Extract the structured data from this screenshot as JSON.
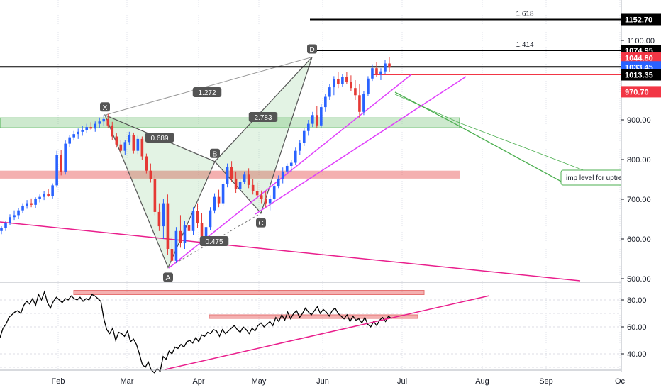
{
  "chart_data": [
    {
      "type": "candlestick",
      "title": "",
      "x_ticks": [
        "Feb",
        "Mar",
        "Apr",
        "May",
        "Jun",
        "Jul",
        "Aug",
        "Sep",
        "Oc"
      ],
      "y_ticks": [
        "500.00",
        "600.00",
        "700.00",
        "800.00",
        "900.00",
        "1100.00"
      ],
      "ylim": [
        495,
        1170
      ],
      "price_tags": [
        {
          "label": "1152.70",
          "value": 1152.7,
          "color": "#000000"
        },
        {
          "label": "1074.95",
          "value": 1074.95,
          "color": "#000000"
        },
        {
          "label": "1044.80",
          "value": 1044.8,
          "color": "#f23645"
        },
        {
          "label": "1033.45",
          "value": 1033.45,
          "color": "#2962ff"
        },
        {
          "label": "1013.35",
          "value": 1013.35,
          "color": "#000000"
        },
        {
          "label": "970.70",
          "value": 970.7,
          "color": "#f23645"
        }
      ],
      "fib_levels": [
        {
          "label": "1.618",
          "value": 1152.7
        },
        {
          "label": "1.414",
          "value": 1074.95
        }
      ],
      "pattern_points": [
        {
          "label": "X",
          "date": "2020-02-20",
          "value": 912
        },
        {
          "label": "A",
          "date": "2020-03-18",
          "value": 528
        },
        {
          "label": "B",
          "date": "2020-04-13",
          "value": 795
        },
        {
          "label": "C",
          "date": "2020-05-04",
          "value": 665
        },
        {
          "label": "D",
          "date": "2020-05-29",
          "value": 1058
        }
      ],
      "ratios": [
        "1.272",
        "0.689",
        "2.783",
        "0.475"
      ],
      "zones": [
        {
          "from": 880,
          "to": 905,
          "color": "green"
        },
        {
          "from": 752,
          "to": 772,
          "color": "red"
        }
      ],
      "annotation": "imp level for uptrend",
      "candles": [
        [
          620,
          632,
          612,
          628
        ],
        [
          628,
          645,
          620,
          640
        ],
        [
          640,
          662,
          635,
          655
        ],
        [
          655,
          672,
          648,
          660
        ],
        [
          660,
          678,
          650,
          672
        ],
        [
          672,
          690,
          665,
          684
        ],
        [
          684,
          698,
          676,
          690
        ],
        [
          690,
          702,
          680,
          686
        ],
        [
          686,
          705,
          678,
          700
        ],
        [
          700,
          712,
          692,
          706
        ],
        [
          706,
          720,
          698,
          714
        ],
        [
          714,
          726,
          706,
          708
        ],
        [
          708,
          740,
          702,
          735
        ],
        [
          735,
          822,
          730,
          812
        ],
        [
          812,
          825,
          760,
          768
        ],
        [
          768,
          848,
          762,
          840
        ],
        [
          840,
          862,
          832,
          856
        ],
        [
          856,
          872,
          848,
          864
        ],
        [
          864,
          878,
          852,
          870
        ],
        [
          870,
          885,
          860,
          874
        ],
        [
          874,
          890,
          866,
          882
        ],
        [
          882,
          894,
          874,
          878
        ],
        [
          878,
          896,
          870,
          890
        ],
        [
          890,
          906,
          880,
          896
        ],
        [
          896,
          912,
          884,
          902
        ],
        [
          902,
          915,
          880,
          886
        ],
        [
          886,
          895,
          850,
          858
        ],
        [
          858,
          866,
          830,
          838
        ],
        [
          838,
          848,
          815,
          822
        ],
        [
          822,
          850,
          812,
          844
        ],
        [
          844,
          870,
          836,
          862
        ],
        [
          862,
          868,
          815,
          822
        ],
        [
          822,
          860,
          814,
          852
        ],
        [
          852,
          858,
          800,
          808
        ],
        [
          808,
          815,
          765,
          772
        ],
        [
          772,
          790,
          742,
          750
        ],
        [
          750,
          760,
          660,
          668
        ],
        [
          668,
          690,
          620,
          632
        ],
        [
          632,
          700,
          600,
          690
        ],
        [
          690,
          712,
          560,
          575
        ],
        [
          575,
          605,
          530,
          545
        ],
        [
          545,
          630,
          540,
          620
        ],
        [
          620,
          660,
          578,
          590
        ],
        [
          590,
          645,
          575,
          635
        ],
        [
          635,
          665,
          610,
          620
        ],
        [
          620,
          680,
          610,
          670
        ],
        [
          670,
          690,
          628,
          640
        ],
        [
          640,
          665,
          582,
          600
        ],
        [
          600,
          640,
          590,
          630
        ],
        [
          630,
          680,
          622,
          672
        ],
        [
          672,
          715,
          664,
          706
        ],
        [
          706,
          724,
          680,
          690
        ],
        [
          690,
          745,
          684,
          738
        ],
        [
          738,
          790,
          730,
          782
        ],
        [
          782,
          796,
          744,
          752
        ],
        [
          752,
          770,
          716,
          726
        ],
        [
          726,
          752,
          720,
          744
        ],
        [
          744,
          770,
          738,
          762
        ],
        [
          762,
          778,
          728,
          736
        ],
        [
          736,
          750,
          712,
          720
        ],
        [
          720,
          742,
          700,
          710
        ],
        [
          710,
          722,
          690,
          700
        ],
        [
          700,
          720,
          680,
          690
        ],
        [
          690,
          710,
          672,
          700
        ],
        [
          700,
          740,
          695,
          732
        ],
        [
          732,
          760,
          728,
          752
        ],
        [
          752,
          780,
          740,
          770
        ],
        [
          770,
          790,
          764,
          784
        ],
        [
          784,
          800,
          770,
          792
        ],
        [
          792,
          830,
          786,
          822
        ],
        [
          822,
          850,
          812,
          842
        ],
        [
          842,
          880,
          834,
          872
        ],
        [
          872,
          900,
          860,
          890
        ],
        [
          890,
          920,
          882,
          912
        ],
        [
          912,
          935,
          880,
          886
        ],
        [
          886,
          940,
          880,
          932
        ],
        [
          932,
          965,
          920,
          958
        ],
        [
          958,
          990,
          950,
          982
        ],
        [
          982,
          1010,
          962,
          1002
        ],
        [
          1002,
          1020,
          980,
          990
        ],
        [
          990,
          1015,
          984,
          1008
        ],
        [
          1008,
          1020,
          990,
          996
        ],
        [
          996,
          1012,
          972,
          980
        ],
        [
          980,
          1000,
          950,
          962
        ],
        [
          962,
          990,
          905,
          920
        ],
        [
          920,
          972,
          912,
          966
        ],
        [
          966,
          1010,
          960,
          1004
        ],
        [
          1004,
          1040,
          998,
          1030
        ],
        [
          1030,
          1045,
          1008,
          1016
        ],
        [
          1016,
          1030,
          1000,
          1022
        ],
        [
          1022,
          1050,
          1015,
          1042
        ],
        [
          1042,
          1058,
          1020,
          1032
        ]
      ]
    },
    {
      "type": "line",
      "title": "",
      "y_ticks": [
        "80.00",
        "60.00",
        "40.00"
      ],
      "ylim": [
        25,
        90
      ],
      "values": [
        52,
        59,
        62,
        67,
        69,
        71,
        72,
        70,
        76,
        79,
        77,
        81,
        76,
        84,
        80,
        86,
        78,
        74,
        79,
        82,
        80,
        78,
        81,
        80,
        83,
        81,
        80,
        82,
        79,
        81,
        80,
        84,
        83,
        81,
        79,
        66,
        58,
        55,
        59,
        50,
        56,
        55,
        53,
        57,
        49,
        51,
        47,
        40,
        32,
        30,
        34,
        28,
        26,
        29,
        27,
        38,
        36,
        42,
        40,
        45,
        44,
        47,
        45,
        49,
        50,
        48,
        52,
        49,
        54,
        53,
        56,
        55,
        58,
        57,
        53,
        58,
        55,
        57,
        59,
        61,
        58,
        56,
        60,
        58,
        55,
        59,
        57,
        61,
        63,
        60,
        62,
        64,
        61,
        67,
        64,
        69,
        65,
        71,
        66,
        70,
        72,
        67,
        70,
        74,
        71,
        69,
        72,
        75,
        70,
        73,
        71,
        68,
        72,
        74,
        70,
        68,
        66,
        69,
        64,
        68,
        65,
        66,
        63,
        67,
        62,
        60,
        64,
        61,
        65,
        67,
        64,
        68,
        66
      ]
    }
  ]
}
